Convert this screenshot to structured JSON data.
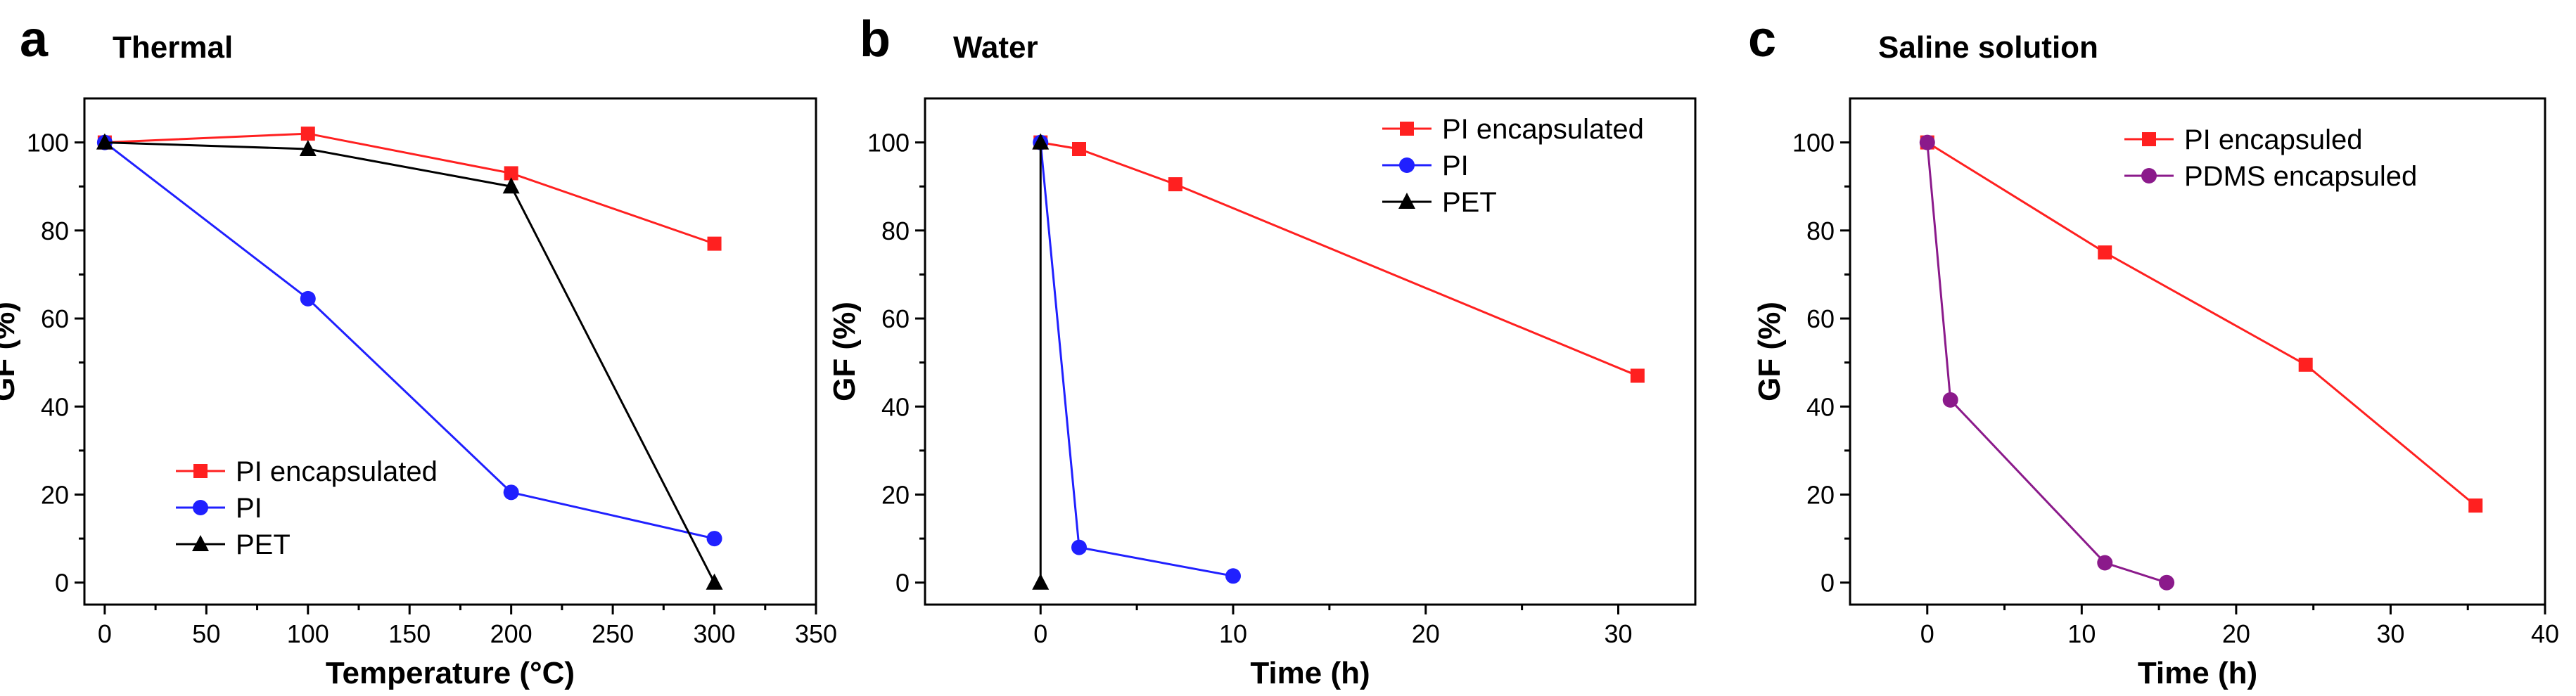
{
  "chart_data": [
    {
      "panel_label": "a",
      "title": "Thermal",
      "type": "line",
      "xlabel": "Temperature (°C)",
      "ylabel": "GF (%)",
      "xlim": [
        -10,
        350
      ],
      "ylim": [
        -5,
        110
      ],
      "xticks": [
        0,
        50,
        100,
        150,
        200,
        250,
        300,
        350
      ],
      "yticks": [
        0,
        20,
        40,
        60,
        80,
        100
      ],
      "legend_position": "bottom-left",
      "series": [
        {
          "name": "PI encapsulated",
          "color": "#ff2020",
          "marker": "square",
          "x": [
            0,
            100,
            200,
            300
          ],
          "y": [
            100,
            102,
            93,
            77
          ]
        },
        {
          "name": "PI",
          "color": "#2020ff",
          "marker": "circle",
          "x": [
            0,
            100,
            200,
            300
          ],
          "y": [
            100,
            64.5,
            20.5,
            10
          ]
        },
        {
          "name": "PET",
          "color": "#000000",
          "marker": "triangle",
          "x": [
            0,
            100,
            200,
            300
          ],
          "y": [
            100,
            98.5,
            90,
            0
          ]
        }
      ]
    },
    {
      "panel_label": "b",
      "title": "Water",
      "type": "line",
      "xlabel": "Time (h)",
      "ylabel": "GF (%)",
      "xlim": [
        -6,
        34
      ],
      "ylim": [
        -5,
        110
      ],
      "xticks": [
        0,
        10,
        20,
        30
      ],
      "yticks": [
        0,
        20,
        40,
        60,
        80,
        100
      ],
      "legend_position": "top-right",
      "series": [
        {
          "name": "PI encapsulated",
          "color": "#ff2020",
          "marker": "square",
          "x": [
            0,
            2,
            7,
            31
          ],
          "y": [
            100,
            98.5,
            90.5,
            47
          ]
        },
        {
          "name": "PI",
          "color": "#2020ff",
          "marker": "circle",
          "x": [
            0,
            2,
            10
          ],
          "y": [
            100,
            8,
            1.5
          ]
        },
        {
          "name": "PET",
          "color": "#000000",
          "marker": "triangle",
          "x": [
            0,
            0
          ],
          "y": [
            100,
            0
          ]
        }
      ]
    },
    {
      "panel_label": "c",
      "title": "Saline solution",
      "type": "line",
      "xlabel": "Time (h)",
      "ylabel": "GF (%)",
      "xlim": [
        -5,
        40
      ],
      "ylim": [
        -5,
        110
      ],
      "xticks": [
        0,
        10,
        20,
        30,
        40
      ],
      "yticks": [
        0,
        20,
        40,
        60,
        80,
        100
      ],
      "legend_position": "top-right",
      "series": [
        {
          "name": "PI encapsuled",
          "color": "#ff2020",
          "marker": "square",
          "x": [
            0,
            11.5,
            24.5,
            35.5
          ],
          "y": [
            100,
            75,
            49.5,
            17.5
          ]
        },
        {
          "name": "PDMS encapsuled",
          "color": "#8b1a8b",
          "marker": "circle",
          "x": [
            0,
            1.5,
            11.5,
            15.5
          ],
          "y": [
            100,
            41.5,
            4.5,
            0
          ]
        }
      ]
    }
  ]
}
